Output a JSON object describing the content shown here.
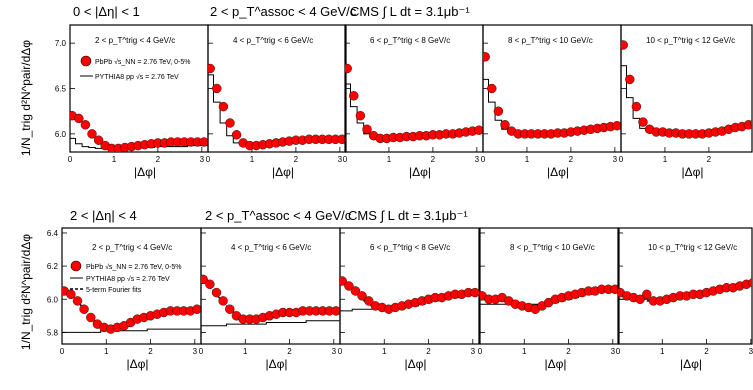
{
  "colors": {
    "data": "#ff0000",
    "edge": "#000000",
    "mc": "#000000",
    "background": "#ffffff"
  },
  "rows": [
    {
      "header": {
        "eta": "0 < |Δη| < 1",
        "assoc": "2 < p_T^assoc < 4 GeV/c",
        "lumi": "CMS ∫ L dt = 3.1μb⁻¹"
      },
      "ylabel": "1/N_trig d²N^pair/dΔφ",
      "legend": {
        "data": "PbPb √s_NN = 2.76 TeV, 0-5%",
        "mc": "PYTHIA8 pp √s = 2.76 TeV",
        "fit": ""
      }
    },
    {
      "header": {
        "eta": "2 < |Δη| < 4",
        "assoc": "2 < p_T^assoc < 4 GeV/c",
        "lumi": "CMS ∫ L dt = 3.1μb⁻¹"
      },
      "ylabel": "1/N_trig d²N^pair/dΔφ",
      "legend": {
        "data": "PbPb √s_NN = 2.76 TeV, 0-5%",
        "mc": "PYTHIA8 pp √s = 2.76 TeV",
        "fit": "5-term Fourier fits"
      }
    }
  ],
  "chart_data": [
    {
      "type": "scatter",
      "title": "0 < |Δη| < 1",
      "xlabel": "|Δφ|",
      "ylabel": "1/N_trig d²N^pair/dΔφ",
      "xlim": [
        0,
        3.14
      ],
      "ylim": [
        5.8,
        7.2
      ],
      "yticks": [
        "6.0",
        "6.5",
        "7.0"
      ],
      "xticks": [
        "0",
        "1",
        "2",
        "3"
      ],
      "panels": [
        {
          "label": "2 < p_T^trig < 4 GeV/c",
          "x": [
            0.05,
            0.2,
            0.35,
            0.5,
            0.65,
            0.8,
            0.95,
            1.1,
            1.25,
            1.4,
            1.55,
            1.7,
            1.85,
            2.0,
            2.15,
            2.3,
            2.45,
            2.6,
            2.75,
            2.9,
            3.05
          ],
          "data": [
            6.2,
            6.17,
            6.1,
            6.0,
            5.93,
            5.87,
            5.84,
            5.84,
            5.85,
            5.86,
            5.87,
            5.88,
            5.89,
            5.9,
            5.9,
            5.91,
            5.91,
            5.91,
            5.91,
            5.91,
            5.91
          ],
          "mc": [
            5.95,
            5.89,
            5.86,
            5.85,
            5.84,
            5.84,
            5.84,
            5.84,
            5.84,
            5.84,
            5.85,
            5.85,
            5.85,
            5.86,
            5.86,
            5.86,
            5.86,
            5.86,
            5.87,
            5.87,
            5.87
          ]
        },
        {
          "label": "4 < p_T^trig < 6 GeV/c",
          "x": [
            0.05,
            0.2,
            0.35,
            0.5,
            0.65,
            0.8,
            0.95,
            1.1,
            1.25,
            1.4,
            1.55,
            1.7,
            1.85,
            2.0,
            2.15,
            2.3,
            2.45,
            2.6,
            2.75,
            2.9,
            3.05
          ],
          "data": [
            6.72,
            6.5,
            6.3,
            6.12,
            5.99,
            5.9,
            5.87,
            5.87,
            5.88,
            5.89,
            5.9,
            5.91,
            5.92,
            5.93,
            5.93,
            5.94,
            5.94,
            5.94,
            5.94,
            5.94,
            5.94
          ],
          "mc": [
            6.65,
            6.35,
            6.12,
            5.98,
            5.9,
            5.87,
            5.87,
            5.87,
            5.88,
            5.89,
            5.9,
            5.91,
            5.92,
            5.92,
            5.93,
            5.93,
            5.93,
            5.93,
            5.93,
            5.93,
            5.93
          ]
        },
        {
          "label": "6 < p_T^trig < 8 GeV/c",
          "x": [
            0.05,
            0.2,
            0.35,
            0.5,
            0.65,
            0.8,
            0.95,
            1.1,
            1.25,
            1.4,
            1.55,
            1.7,
            1.85,
            2.0,
            2.15,
            2.3,
            2.45,
            2.6,
            2.75,
            2.9,
            3.05
          ],
          "data": [
            6.72,
            6.42,
            6.2,
            6.05,
            5.98,
            5.95,
            5.95,
            5.96,
            5.96,
            5.97,
            5.97,
            5.98,
            5.98,
            5.99,
            5.99,
            6.0,
            6.0,
            6.01,
            6.02,
            6.03,
            6.04
          ],
          "mc": [
            6.55,
            6.3,
            6.12,
            6.0,
            5.96,
            5.95,
            5.95,
            5.95,
            5.96,
            5.96,
            5.97,
            5.97,
            5.98,
            5.99,
            6.0,
            6.0,
            6.01,
            6.02,
            6.03,
            6.04,
            6.05
          ]
        },
        {
          "label": "8 < p_T^trig < 10 GeV/c",
          "x": [
            0.05,
            0.2,
            0.35,
            0.5,
            0.65,
            0.8,
            0.95,
            1.1,
            1.25,
            1.4,
            1.55,
            1.7,
            1.85,
            2.0,
            2.15,
            2.3,
            2.45,
            2.6,
            2.75,
            2.9,
            3.05
          ],
          "data": [
            6.85,
            6.5,
            6.25,
            6.1,
            6.03,
            6.0,
            6.0,
            6.0,
            6.0,
            6.0,
            6.0,
            6.01,
            6.01,
            6.02,
            6.03,
            6.04,
            6.05,
            6.06,
            6.07,
            6.08,
            6.09
          ],
          "mc": [
            6.6,
            6.35,
            6.15,
            6.05,
            6.01,
            6.0,
            6.0,
            6.0,
            6.0,
            6.0,
            6.0,
            6.01,
            6.02,
            6.02,
            6.03,
            6.04,
            6.05,
            6.06,
            6.07,
            6.08,
            6.09
          ]
        },
        {
          "label": "10 < p_T^trig < 12 GeV/c",
          "x": [
            0.05,
            0.2,
            0.35,
            0.5,
            0.65,
            0.8,
            0.95,
            1.1,
            1.25,
            1.4,
            1.55,
            1.7,
            1.85,
            2.0,
            2.15,
            2.3,
            2.45,
            2.6,
            2.75,
            2.9,
            3.05
          ],
          "data": [
            6.98,
            6.6,
            6.3,
            6.13,
            6.05,
            6.02,
            6.02,
            6.01,
            6.01,
            6.0,
            6.0,
            6.0,
            6.0,
            6.01,
            6.02,
            6.03,
            6.05,
            6.07,
            6.08,
            6.1,
            6.12
          ],
          "mc": [
            6.75,
            6.4,
            6.17,
            6.06,
            6.02,
            6.01,
            6.0,
            6.0,
            6.0,
            6.0,
            6.0,
            6.0,
            6.01,
            6.01,
            6.02,
            6.03,
            6.05,
            6.06,
            6.08,
            6.1,
            6.12
          ]
        }
      ]
    },
    {
      "type": "scatter",
      "title": "2 < |Δη| < 4",
      "xlabel": "|Δφ|",
      "ylabel": "1/N_trig d²N^pair/dΔφ",
      "xlim": [
        0,
        3.14
      ],
      "ylim": [
        5.73,
        6.43
      ],
      "yticks": [
        "5.8",
        "6.0",
        "6.2",
        "6.4"
      ],
      "xticks": [
        "0",
        "1",
        "2",
        "3"
      ],
      "panels": [
        {
          "label": "2 < p_T^trig < 4 GeV/c",
          "x": [
            0.05,
            0.2,
            0.35,
            0.5,
            0.65,
            0.8,
            0.95,
            1.1,
            1.25,
            1.4,
            1.55,
            1.7,
            1.85,
            2.0,
            2.15,
            2.3,
            2.45,
            2.6,
            2.75,
            2.9,
            3.05
          ],
          "data": [
            6.05,
            6.03,
            5.99,
            5.94,
            5.89,
            5.85,
            5.83,
            5.82,
            5.83,
            5.84,
            5.86,
            5.88,
            5.89,
            5.9,
            5.91,
            5.92,
            5.93,
            5.93,
            5.93,
            5.93,
            5.94
          ],
          "mc": [
            5.8,
            5.8,
            5.8,
            5.8,
            5.8,
            5.8,
            5.81,
            5.81,
            5.81,
            5.81,
            5.81,
            5.81,
            5.81,
            5.82,
            5.82,
            5.82,
            5.82,
            5.82,
            5.82,
            5.82,
            5.82
          ],
          "fit": [
            6.06,
            6.03,
            5.99,
            5.94,
            5.89,
            5.85,
            5.83,
            5.82,
            5.83,
            5.84,
            5.86,
            5.88,
            5.89,
            5.9,
            5.91,
            5.92,
            5.93,
            5.93,
            5.93,
            5.93,
            5.94
          ]
        },
        {
          "label": "4 < p_T^trig < 6 GeV/c",
          "x": [
            0.05,
            0.2,
            0.35,
            0.5,
            0.65,
            0.8,
            0.95,
            1.1,
            1.25,
            1.4,
            1.55,
            1.7,
            1.85,
            2.0,
            2.15,
            2.3,
            2.45,
            2.6,
            2.75,
            2.9,
            3.05
          ],
          "data": [
            6.12,
            6.09,
            6.04,
            5.99,
            5.94,
            5.9,
            5.88,
            5.88,
            5.88,
            5.89,
            5.9,
            5.91,
            5.92,
            5.92,
            5.92,
            5.93,
            5.93,
            5.93,
            5.93,
            5.93,
            5.93
          ],
          "mc": [
            5.84,
            5.84,
            5.84,
            5.84,
            5.85,
            5.85,
            5.85,
            5.85,
            5.85,
            5.85,
            5.86,
            5.86,
            5.86,
            5.86,
            5.86,
            5.86,
            5.87,
            5.87,
            5.87,
            5.87,
            5.87
          ],
          "fit": [
            6.12,
            6.08,
            6.03,
            5.98,
            5.94,
            5.91,
            5.89,
            5.88,
            5.88,
            5.89,
            5.9,
            5.91,
            5.92,
            5.92,
            5.92,
            5.93,
            5.93,
            5.93,
            5.93,
            5.93,
            5.93
          ]
        },
        {
          "label": "6 < p_T^trig < 8 GeV/c",
          "x": [
            0.05,
            0.2,
            0.35,
            0.5,
            0.65,
            0.8,
            0.95,
            1.1,
            1.25,
            1.4,
            1.55,
            1.7,
            1.85,
            2.0,
            2.15,
            2.3,
            2.45,
            2.6,
            2.75,
            2.9,
            3.05
          ],
          "data": [
            6.11,
            6.08,
            6.05,
            6.02,
            5.99,
            5.96,
            5.95,
            5.94,
            5.95,
            5.96,
            5.97,
            5.98,
            5.99,
            6.0,
            6.01,
            6.01,
            6.02,
            6.03,
            6.03,
            6.04,
            6.04
          ],
          "mc": [
            5.93,
            5.93,
            5.94,
            5.94,
            5.94,
            5.94,
            5.94,
            5.94,
            5.95,
            5.95,
            5.96,
            5.96,
            5.97,
            5.98,
            5.99,
            6.0,
            6.01,
            6.01,
            6.02,
            6.03,
            6.04
          ],
          "fit": [
            6.1,
            6.08,
            6.04,
            6.0,
            5.97,
            5.95,
            5.94,
            5.95,
            5.95,
            5.96,
            5.97,
            5.98,
            5.99,
            6.0,
            6.01,
            6.01,
            6.02,
            6.03,
            6.03,
            6.04,
            6.04
          ]
        },
        {
          "label": "8 < p_T^trig < 10 GeV/c",
          "x": [
            0.05,
            0.2,
            0.35,
            0.5,
            0.65,
            0.8,
            0.95,
            1.1,
            1.25,
            1.4,
            1.55,
            1.7,
            1.85,
            2.0,
            2.15,
            2.3,
            2.45,
            2.6,
            2.75,
            2.9,
            3.05
          ],
          "data": [
            6.02,
            6.0,
            6.0,
            6.01,
            5.99,
            5.97,
            5.96,
            5.95,
            5.94,
            5.96,
            5.98,
            6.0,
            6.01,
            6.02,
            6.03,
            6.04,
            6.05,
            6.05,
            6.06,
            6.06,
            6.06
          ],
          "mc": [
            5.97,
            5.97,
            5.97,
            5.97,
            5.97,
            5.97,
            5.97,
            5.97,
            5.97,
            5.97,
            5.98,
            5.98,
            5.99,
            6.0,
            6.01,
            6.02,
            6.03,
            6.04,
            6.05,
            6.05,
            6.06
          ],
          "fit": [
            6.03,
            6.02,
            6.01,
            6.0,
            5.98,
            5.97,
            5.96,
            5.96,
            5.96,
            5.97,
            5.98,
            5.99,
            6.0,
            6.02,
            6.03,
            6.04,
            6.05,
            6.05,
            6.06,
            6.06,
            6.06
          ]
        },
        {
          "label": "10 < p_T^trig < 12 GeV/c",
          "x": [
            0.05,
            0.2,
            0.35,
            0.5,
            0.65,
            0.8,
            0.95,
            1.1,
            1.25,
            1.4,
            1.55,
            1.7,
            1.85,
            2.0,
            2.15,
            2.3,
            2.45,
            2.6,
            2.75,
            2.9,
            3.05
          ],
          "data": [
            6.04,
            6.02,
            6.01,
            6.0,
            6.03,
            5.99,
            5.99,
            6.0,
            6.01,
            6.02,
            6.02,
            6.03,
            6.03,
            6.04,
            6.05,
            6.06,
            6.07,
            6.07,
            6.08,
            6.09,
            6.1
          ],
          "mc": [
            6.0,
            6.0,
            6.0,
            6.0,
            6.0,
            6.0,
            6.0,
            6.0,
            6.01,
            6.01,
            6.01,
            6.02,
            6.02,
            6.03,
            6.04,
            6.05,
            6.06,
            6.07,
            6.08,
            6.09,
            6.1
          ],
          "fit": [
            6.04,
            6.02,
            6.01,
            6.0,
            5.99,
            5.99,
            5.99,
            6.0,
            6.01,
            6.02,
            6.02,
            6.03,
            6.03,
            6.04,
            6.05,
            6.06,
            6.07,
            6.07,
            6.08,
            6.09,
            6.1
          ]
        }
      ]
    }
  ]
}
